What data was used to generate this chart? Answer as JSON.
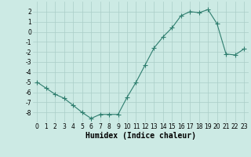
{
  "x": [
    0,
    1,
    2,
    3,
    4,
    5,
    6,
    7,
    8,
    9,
    10,
    11,
    12,
    13,
    14,
    15,
    16,
    17,
    18,
    19,
    20,
    21,
    22,
    23
  ],
  "y": [
    -5.0,
    -5.6,
    -6.2,
    -6.6,
    -7.3,
    -8.0,
    -8.6,
    -8.2,
    -8.2,
    -8.2,
    -6.5,
    -5.0,
    -3.3,
    -1.6,
    -0.5,
    0.4,
    1.6,
    2.0,
    1.9,
    2.2,
    0.8,
    -2.2,
    -2.3,
    -1.7
  ],
  "xlim": [
    -0.5,
    23.5
  ],
  "ylim": [
    -9,
    3
  ],
  "yticks": [
    2,
    1,
    0,
    -1,
    -2,
    -3,
    -4,
    -5,
    -6,
    -7,
    -8
  ],
  "xtick_labels": [
    "0",
    "1",
    "2",
    "3",
    "4",
    "5",
    "6",
    "7",
    "8",
    "9",
    "10",
    "11",
    "12",
    "13",
    "14",
    "15",
    "16",
    "17",
    "18",
    "19",
    "20",
    "21",
    "22",
    "23"
  ],
  "xlabel": "Humidex (Indice chaleur)",
  "line_color": "#2e7d6e",
  "marker": "s",
  "marker_size": 2.0,
  "bg_color": "#cceae4",
  "grid_color": "#aacec8",
  "tick_label_fontsize": 5.5,
  "xlabel_fontsize": 7.0,
  "line_width": 0.8
}
